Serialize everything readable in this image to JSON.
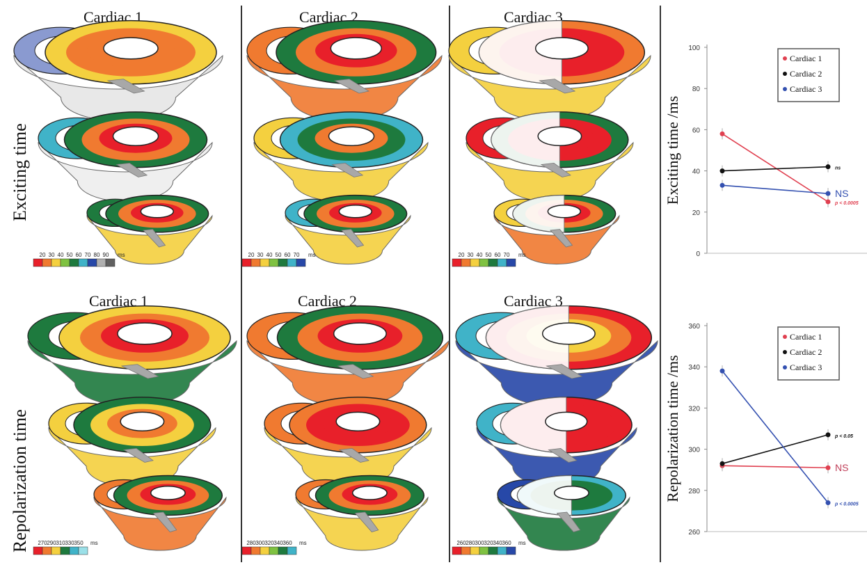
{
  "row_labels": {
    "top": "Exciting time",
    "bottom": "Repolarization time"
  },
  "map_titles": {
    "top": [
      "Cardiac 1",
      "Cardiac 2",
      "Cardiac 3"
    ],
    "bottom": [
      "Cardiac 1",
      "Cardiac 2",
      "Cardiac 3"
    ]
  },
  "scales": {
    "top": [
      {
        "ticks": [
          "20",
          "30",
          "40",
          "50",
          "60",
          "70",
          "80",
          "90"
        ],
        "unit": "ms",
        "colors": [
          "#e8202a",
          "#f07a30",
          "#f4d03f",
          "#7fc241",
          "#1e7a3e",
          "#40b3c8",
          "#2748a8",
          "#b0b0b0",
          "#606060"
        ]
      },
      {
        "ticks": [
          "20",
          "30",
          "40",
          "50",
          "60",
          "70"
        ],
        "unit": "ms",
        "colors": [
          "#e8202a",
          "#f07a30",
          "#f4d03f",
          "#7fc241",
          "#1e7a3e",
          "#40b3c8",
          "#2748a8"
        ]
      },
      {
        "ticks": [
          "20",
          "30",
          "40",
          "50",
          "60",
          "70"
        ],
        "unit": "ms",
        "colors": [
          "#e8202a",
          "#f07a30",
          "#f4d03f",
          "#7fc241",
          "#1e7a3e",
          "#40b3c8",
          "#2748a8"
        ]
      }
    ],
    "bottom": [
      {
        "ticks": [
          "270",
          "290",
          "310",
          "330",
          "350"
        ],
        "unit": "ms",
        "colors": [
          "#e8202a",
          "#f07a30",
          "#f4d03f",
          "#1e7a3e",
          "#40b3c8",
          "#9be0e8"
        ]
      },
      {
        "ticks": [
          "280",
          "300",
          "320",
          "340",
          "360"
        ],
        "unit": "ms",
        "colors": [
          "#e8202a",
          "#f07a30",
          "#f4d03f",
          "#7fc241",
          "#1e7a3e",
          "#40b3c8"
        ]
      },
      {
        "ticks": [
          "260",
          "280",
          "300",
          "320",
          "340",
          "360"
        ],
        "unit": "ms",
        "colors": [
          "#e8202a",
          "#f07a30",
          "#f4d03f",
          "#7fc241",
          "#1e7a3e",
          "#40b3c8",
          "#2748a8"
        ]
      }
    ]
  },
  "chart_data": [
    {
      "type": "line",
      "ylabel": "Exciting time /ms",
      "ylim": [
        0,
        100
      ],
      "yticks": [
        0,
        20,
        40,
        60,
        80,
        100
      ],
      "legend_position": "top-right",
      "series": [
        {
          "name": "Cardiac 1",
          "color": "#e04050",
          "values": [
            58,
            25
          ],
          "annotation": "p < 0.0005"
        },
        {
          "name": "Cardiac 2",
          "color": "#111111",
          "values": [
            40,
            42
          ],
          "annotation": "ns"
        },
        {
          "name": "Cardiac 3",
          "color": "#3350b0",
          "values": [
            33,
            29
          ],
          "annotation": "NS"
        }
      ]
    },
    {
      "type": "line",
      "ylabel": "Repolarization time /ms",
      "ylim": [
        260,
        360
      ],
      "yticks": [
        260,
        280,
        300,
        320,
        340,
        360
      ],
      "legend_position": "top-right",
      "series": [
        {
          "name": "Cardiac 1",
          "color": "#e04050",
          "values": [
            292,
            291
          ],
          "annotation": "NS"
        },
        {
          "name": "Cardiac 2",
          "color": "#111111",
          "values": [
            293,
            307
          ],
          "annotation": "p < 0.05"
        },
        {
          "name": "Cardiac 3",
          "color": "#3350b0",
          "values": [
            338,
            274
          ],
          "annotation": "p < 0.0005"
        }
      ]
    }
  ]
}
